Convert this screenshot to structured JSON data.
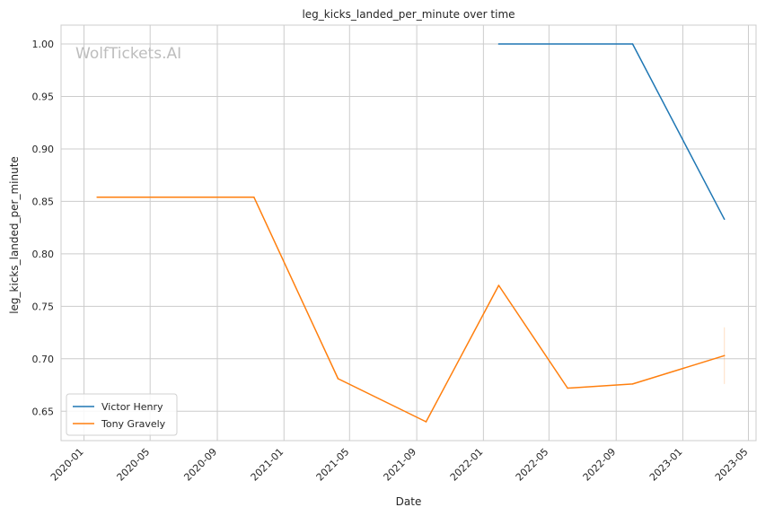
{
  "chart_data": {
    "type": "line",
    "title": "leg_kicks_landed_per_minute over time",
    "xlabel": "Date",
    "ylabel": "leg_kicks_landed_per_minute",
    "watermark": "WolfTickets.AI",
    "x_ticks": [
      "2020-01",
      "2020-05",
      "2020-09",
      "2021-01",
      "2021-05",
      "2021-09",
      "2022-01",
      "2022-05",
      "2022-09",
      "2023-01",
      "2023-05"
    ],
    "y_ticks": [
      "0.65",
      "0.70",
      "0.75",
      "0.80",
      "0.85",
      "0.90",
      "0.95",
      "1.00"
    ],
    "xlim": [
      "2019-11-20",
      "2023-05-15"
    ],
    "ylim": [
      0.622,
      1.018
    ],
    "grid": true,
    "legend_position": "lower-left",
    "series": [
      {
        "name": "Victor Henry",
        "color": "#1f77b4",
        "points": [
          {
            "x": "2022-01-29",
            "y": 1.0
          },
          {
            "x": "2022-10-01",
            "y": 1.0
          },
          {
            "x": "2023-03-18",
            "y": 0.833
          }
        ]
      },
      {
        "name": "Tony Gravely",
        "color": "#ff7f0e",
        "points": [
          {
            "x": "2020-01-25",
            "y": 0.854
          },
          {
            "x": "2020-11-07",
            "y": 0.854
          },
          {
            "x": "2021-04-10",
            "y": 0.681
          },
          {
            "x": "2021-09-18",
            "y": 0.64
          },
          {
            "x": "2022-01-29",
            "y": 0.77
          },
          {
            "x": "2022-06-04",
            "y": 0.672
          },
          {
            "x": "2022-10-01",
            "y": 0.676
          },
          {
            "x": "2023-03-18",
            "y": 0.703
          }
        ],
        "error_band": {
          "x": "2023-03-18",
          "low": 0.676,
          "high": 0.73
        }
      }
    ]
  }
}
